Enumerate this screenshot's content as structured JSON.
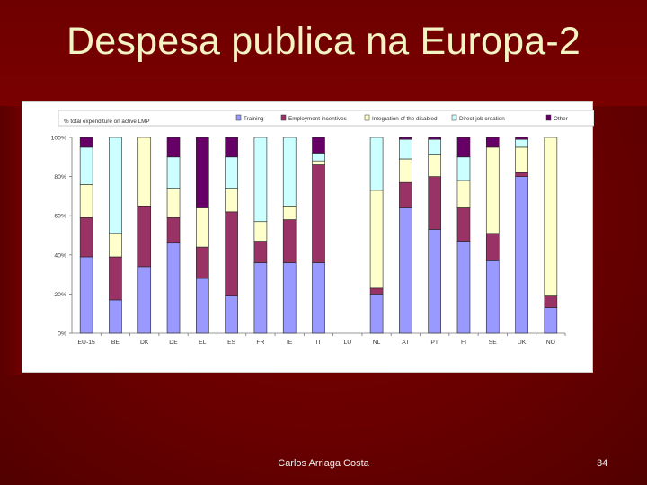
{
  "slide": {
    "title": "Despesa publica na Europa-2",
    "footer": "Carlos Arriaga Costa",
    "page_number": "34"
  },
  "chart_data": {
    "type": "bar",
    "stacked": true,
    "ylabel": "% total expenditure on active LMP",
    "ylim": [
      0,
      100
    ],
    "yticks": [
      "0%",
      "20%",
      "40%",
      "60%",
      "80%",
      "100%"
    ],
    "ytick_values": [
      0,
      20,
      40,
      60,
      80,
      100
    ],
    "grid": false,
    "legend_position": "top",
    "categories": [
      "EU-15",
      "BE",
      "DK",
      "DE",
      "EL",
      "ES",
      "FR",
      "IE",
      "IT",
      "LU",
      "NL",
      "AT",
      "PT",
      "FI",
      "SE",
      "UK",
      "NO"
    ],
    "series": [
      {
        "name": "Training",
        "color": "#9999ff",
        "values": [
          39,
          17,
          34,
          46,
          28,
          19,
          36,
          36,
          36,
          0,
          20,
          64,
          53,
          47,
          37,
          80,
          13
        ]
      },
      {
        "name": "Employment incentives",
        "color": "#993366",
        "values": [
          20,
          22,
          31,
          13,
          16,
          43,
          11,
          22,
          50,
          0,
          3,
          13,
          27,
          17,
          14,
          2,
          6
        ]
      },
      {
        "name": "Integration of the disabled",
        "color": "#ffffcc",
        "values": [
          17,
          12,
          35,
          15,
          20,
          12,
          10,
          7,
          2,
          0,
          50,
          12,
          11,
          14,
          44,
          13,
          81
        ]
      },
      {
        "name": "Direct job creation",
        "color": "#ccffff",
        "values": [
          19,
          49,
          0,
          16,
          0,
          16,
          43,
          35,
          4,
          0,
          27,
          10,
          8,
          12,
          0,
          4,
          0
        ]
      },
      {
        "name": "Other",
        "color": "#660066",
        "values": [
          5,
          0,
          0,
          10,
          36,
          10,
          0,
          0,
          8,
          0,
          0,
          1,
          1,
          10,
          5,
          1,
          0
        ]
      }
    ]
  }
}
